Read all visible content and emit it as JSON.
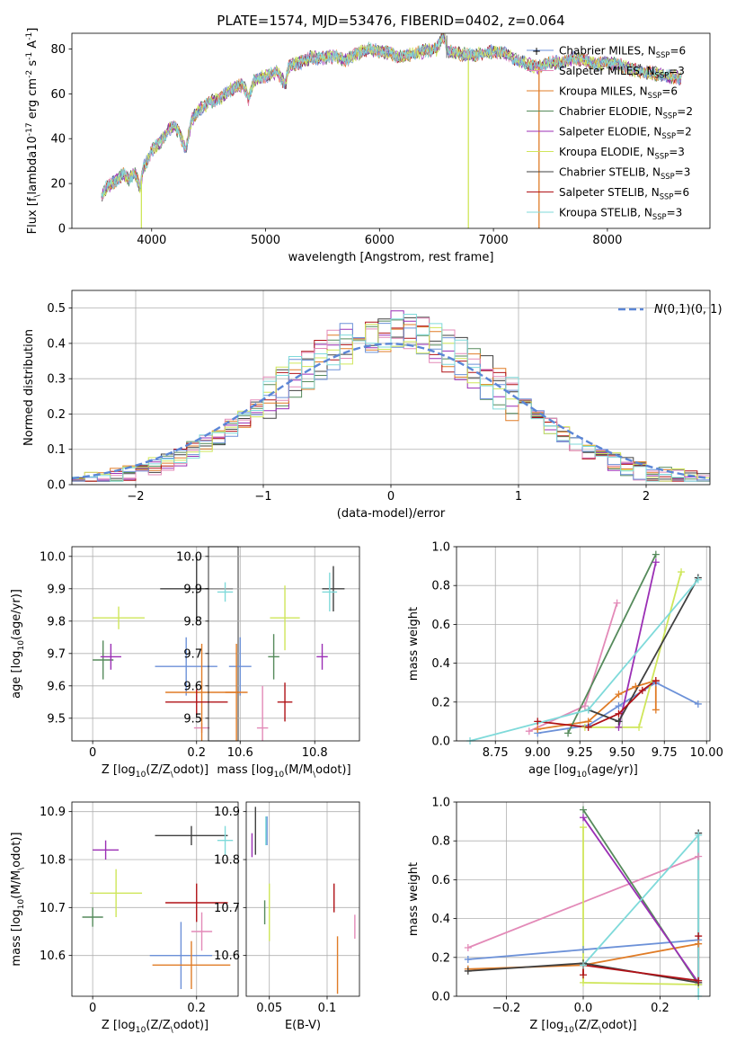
{
  "series_styles": [
    {
      "name": "Chabrier MILES, N$_{SSP}$=6",
      "color": "#6c91d8"
    },
    {
      "name": "Salpeter MILES, N$_{SSP}$=3",
      "color": "#e38ab8"
    },
    {
      "name": "Kroupa MILES, N$_{SSP}$=6",
      "color": "#e07c27"
    },
    {
      "name": "Chabrier ELODIE, N$_{SSP}$=2",
      "color": "#558a5b"
    },
    {
      "name": "Salpeter ELODIE, N$_{SSP}$=2",
      "color": "#9b2fb5"
    },
    {
      "name": "Kroupa ELODIE, N$_{SSP}$=3",
      "color": "#cfe65a"
    },
    {
      "name": "Chabrier STELIB, N$_{SSP}$=3",
      "color": "#404040"
    },
    {
      "name": "Salpeter STELIB, N$_{SSP}$=6",
      "color": "#b01217"
    },
    {
      "name": "Kroupa STELIB, N$_{SSP}$=3",
      "color": "#7fdada"
    }
  ],
  "chart_data": [
    {
      "id": "spectrum",
      "type": "line",
      "title": "PLATE=1574, MJD=53476, FIBERID=0402, z=0.064",
      "xlabel": "wavelength [Angstrom, rest frame]",
      "ylabel": "Flux [f$_\\lambda$10$^{-17}$ erg cm$^{-2}$ s$^{-1}$ A$^{-1}$]",
      "xlim": [
        3300,
        8900
      ],
      "ylim": [
        0,
        87
      ],
      "xticks": [
        4000,
        5000,
        6000,
        7000,
        8000
      ],
      "yticks": [
        0,
        20,
        40,
        60,
        80
      ],
      "grid": false,
      "legend": "upper-right",
      "x": [
        3560,
        3600,
        3650,
        3700,
        3750,
        3800,
        3850,
        3900,
        3930,
        3960,
        4000,
        4050,
        4100,
        4150,
        4200,
        4250,
        4300,
        4350,
        4400,
        4500,
        4600,
        4700,
        4800,
        4850,
        4900,
        5000,
        5100,
        5175,
        5200,
        5300,
        5400,
        5500,
        5600,
        5700,
        5800,
        5900,
        6000,
        6100,
        6200,
        6300,
        6400,
        6500,
        6563,
        6600,
        6700,
        6800,
        6900,
        7000,
        7100,
        7200,
        7300,
        7400,
        7500,
        7600,
        7700,
        7800,
        7900,
        8000,
        8100,
        8200,
        8300,
        8400,
        8500,
        8650
      ],
      "y": [
        14,
        18,
        20,
        22,
        24,
        22,
        25,
        18,
        28,
        30,
        35,
        37,
        40,
        44,
        46,
        42,
        35,
        48,
        52,
        56,
        58,
        62,
        64,
        58,
        66,
        68,
        70,
        64,
        72,
        74,
        76,
        76,
        77,
        75,
        78,
        80,
        79,
        78,
        76,
        78,
        79,
        80,
        86,
        79,
        78,
        77,
        78,
        79,
        78,
        75,
        73,
        72,
        74,
        74,
        76,
        75,
        73,
        74,
        73,
        71,
        70,
        69,
        68,
        67
      ],
      "dips": [
        {
          "x": 3910,
          "series": 5
        },
        {
          "x": 6780,
          "series": 5
        },
        {
          "x": 7400,
          "series": 2
        }
      ],
      "spike": {
        "x": 6590,
        "value": 86
      }
    },
    {
      "id": "residuals",
      "type": "area",
      "xlabel": "(data-model)/error",
      "ylabel": "Normed distribution",
      "xlim": [
        -2.5,
        2.5
      ],
      "ylim": [
        0,
        0.55
      ],
      "xticks": [
        -2,
        -1,
        0,
        1,
        2
      ],
      "yticks": [
        0.0,
        0.1,
        0.2,
        0.3,
        0.4,
        0.5
      ],
      "grid": true,
      "legend": "upper-right",
      "bin_width": 0.1,
      "reference": {
        "name": "$\\mathcal{N}(0,1)$",
        "color": "#5b86d6",
        "dash": true
      }
    },
    {
      "id": "age-vs-Z",
      "type": "scatter",
      "xlabel": "Z [log$_{10}$($Z/Z_\\odot$)]",
      "ylabel": "age  [log$_{10}$($age/yr$)]",
      "xlim": [
        -0.04,
        0.28
      ],
      "ylim": [
        9.43,
        10.03
      ],
      "xticks": [
        0.0,
        0.2
      ],
      "yticks": [
        9.5,
        9.6,
        9.7,
        9.8,
        9.9,
        10.0
      ],
      "grid": true,
      "points": [
        {
          "series": 0,
          "x": 0.18,
          "y": 9.66,
          "xerr": 0.06,
          "yerr": 0.09
        },
        {
          "series": 1,
          "x": 0.21,
          "y": 9.47,
          "xerr": 0.015,
          "yerr": 0.015
        },
        {
          "series": 2,
          "x": 0.21,
          "y": 9.58,
          "xerr": 0.07,
          "yerr": 0.15
        },
        {
          "series": 3,
          "x": 0.02,
          "y": 9.68,
          "xerr": 0.02,
          "yerr": 0.06
        },
        {
          "series": 4,
          "x": 0.035,
          "y": 9.69,
          "xerr": 0.02,
          "yerr": 0.04
        },
        {
          "series": 5,
          "x": 0.05,
          "y": 9.81,
          "xerr": 0.05,
          "yerr": 0.035
        },
        {
          "series": 6,
          "x": 0.2,
          "y": 9.9,
          "xerr": 0.07,
          "yerr": 0.1
        },
        {
          "series": 7,
          "x": 0.2,
          "y": 9.55,
          "xerr": 0.06,
          "yerr": 0.04
        },
        {
          "series": 8,
          "x": 0.255,
          "y": 9.89,
          "xerr": 0.015,
          "yerr": 0.03
        }
      ]
    },
    {
      "id": "age-vs-mass",
      "type": "scatter",
      "xlabel": "mass [log$_{10}$($M/M_\\odot$)]",
      "ylabel": "",
      "xlim": [
        10.515,
        10.92
      ],
      "ylim": [
        9.43,
        10.03
      ],
      "xticks": [
        10.6,
        10.8
      ],
      "yticks": [
        9.5,
        9.6,
        9.7,
        9.8,
        9.9,
        10.0
      ],
      "grid": true,
      "points": [
        {
          "series": 0,
          "x": 10.6,
          "y": 9.66,
          "xerr": 0.03,
          "yerr": 0.09
        },
        {
          "series": 1,
          "x": 10.66,
          "y": 9.47,
          "xerr": 0.015,
          "yerr": 0.13
        },
        {
          "series": 2,
          "x": 10.59,
          "y": 9.58,
          "xerr": 0.03,
          "yerr": 0.15
        },
        {
          "series": 3,
          "x": 10.69,
          "y": 9.69,
          "xerr": 0.015,
          "yerr": 0.07
        },
        {
          "series": 4,
          "x": 10.82,
          "y": 9.69,
          "xerr": 0.015,
          "yerr": 0.04
        },
        {
          "series": 5,
          "x": 10.72,
          "y": 9.81,
          "xerr": 0.04,
          "yerr": 0.1
        },
        {
          "series": 6,
          "x": 10.85,
          "y": 9.9,
          "xerr": 0.03,
          "yerr": 0.07
        },
        {
          "series": 7,
          "x": 10.72,
          "y": 9.55,
          "xerr": 0.02,
          "yerr": 0.06
        },
        {
          "series": 8,
          "x": 10.84,
          "y": 9.89,
          "xerr": 0.02,
          "yerr": 0.06
        }
      ]
    },
    {
      "id": "weights-vs-age",
      "type": "line",
      "xlabel": "age  [log$_{10}$($age/yr$)]",
      "ylabel": "mass weight",
      "xlim": [
        8.52,
        10.02
      ],
      "ylim": [
        0,
        1.0
      ],
      "xticks": [
        8.75,
        9.0,
        9.25,
        9.5,
        9.75,
        10.0
      ],
      "xtick_labels": [
        "8.75",
        "9.00",
        "9.25",
        "9.50",
        "9.75",
        "10.00"
      ],
      "yticks": [
        0.0,
        0.2,
        0.4,
        0.6,
        0.8,
        1.0
      ],
      "grid": true,
      "series": [
        {
          "series": 0,
          "x": [
            9.0,
            9.3,
            9.48,
            9.7,
            9.95
          ],
          "y": [
            0.04,
            0.08,
            0.18,
            0.3,
            0.19
          ]
        },
        {
          "series": 1,
          "x": [
            8.95,
            9.28,
            9.47
          ],
          "y": [
            0.05,
            0.18,
            0.71
          ]
        },
        {
          "series": 2,
          "x": [
            9.0,
            9.3,
            9.48,
            9.58,
            9.7,
            9.7
          ],
          "y": [
            0.06,
            0.1,
            0.24,
            0.28,
            0.31,
            0.16
          ]
        },
        {
          "series": 3,
          "x": [
            9.18,
            9.7
          ],
          "y": [
            0.04,
            0.96
          ]
        },
        {
          "series": 4,
          "x": [
            9.48,
            9.7
          ],
          "y": [
            0.07,
            0.92
          ]
        },
        {
          "series": 5,
          "x": [
            9.28,
            9.6,
            9.85
          ],
          "y": [
            0.07,
            0.07,
            0.87
          ]
        },
        {
          "series": 6,
          "x": [
            9.3,
            9.48,
            9.95
          ],
          "y": [
            0.16,
            0.1,
            0.84
          ]
        },
        {
          "series": 7,
          "x": [
            9.0,
            9.3,
            9.48,
            9.62,
            9.7
          ],
          "y": [
            0.1,
            0.07,
            0.14,
            0.26,
            0.31
          ]
        },
        {
          "series": 8,
          "x": [
            8.6,
            9.3,
            9.95
          ],
          "y": [
            0.0,
            0.16,
            0.83
          ]
        }
      ]
    },
    {
      "id": "mass-vs-Z",
      "type": "scatter",
      "xlabel": "Z [log$_{10}$($Z/Z_\\odot$)]",
      "ylabel": "mass [log$_{10}$($M/M_\\odot$)]",
      "xlim": [
        -0.04,
        0.28
      ],
      "ylim": [
        10.515,
        10.92
      ],
      "xticks": [
        0.0,
        0.2
      ],
      "yticks": [
        10.6,
        10.7,
        10.8,
        10.9
      ],
      "grid": true,
      "points": [
        {
          "series": 0,
          "x": 0.17,
          "y": 10.6,
          "xerr": 0.06,
          "yerr": 0.07
        },
        {
          "series": 1,
          "x": 0.21,
          "y": 10.65,
          "xerr": 0.02,
          "yerr": 0.04
        },
        {
          "series": 2,
          "x": 0.19,
          "y": 10.58,
          "xerr": 0.075,
          "yerr": 0.05
        },
        {
          "series": 3,
          "x": 0.0,
          "y": 10.68,
          "xerr": 0.02,
          "yerr": 0.02
        },
        {
          "series": 4,
          "x": 0.025,
          "y": 10.82,
          "xerr": 0.025,
          "yerr": 0.02
        },
        {
          "series": 5,
          "x": 0.045,
          "y": 10.73,
          "xerr": 0.05,
          "yerr": 0.05
        },
        {
          "series": 6,
          "x": 0.19,
          "y": 10.85,
          "xerr": 0.07,
          "yerr": 0.02
        },
        {
          "series": 7,
          "x": 0.2,
          "y": 10.71,
          "xerr": 0.06,
          "yerr": 0.04
        },
        {
          "series": 8,
          "x": 0.255,
          "y": 10.84,
          "xerr": 0.015,
          "yerr": 0.03
        }
      ]
    },
    {
      "id": "mass-vs-EBV",
      "type": "scatter",
      "xlabel": "E(B-V)",
      "ylabel": "",
      "xlim": [
        0.03,
        0.128
      ],
      "ylim": [
        10.515,
        10.92
      ],
      "xticks": [
        0.05,
        0.1
      ],
      "yticks": [
        10.6,
        10.7,
        10.8,
        10.9
      ],
      "grid": true,
      "points": [
        {
          "series": 0,
          "x": 0.048,
          "y": 10.86,
          "xerr": 0.0,
          "yerr": 0.03
        },
        {
          "series": 1,
          "x": 0.124,
          "y": 10.66,
          "xerr": 0.0,
          "yerr": 0.025
        },
        {
          "series": 2,
          "x": 0.109,
          "y": 10.58,
          "xerr": 0.0,
          "yerr": 0.06
        },
        {
          "series": 3,
          "x": 0.046,
          "y": 10.69,
          "xerr": 0.0,
          "yerr": 0.025
        },
        {
          "series": 4,
          "x": 0.035,
          "y": 10.83,
          "xerr": 0.0,
          "yerr": 0.025
        },
        {
          "series": 5,
          "x": 0.05,
          "y": 10.69,
          "xerr": 0.0,
          "yerr": 0.06
        },
        {
          "series": 6,
          "x": 0.038,
          "y": 10.86,
          "xerr": 0.0,
          "yerr": 0.05
        },
        {
          "series": 7,
          "x": 0.106,
          "y": 10.72,
          "xerr": 0.0,
          "yerr": 0.03
        },
        {
          "series": 8,
          "x": 0.047,
          "y": 10.86,
          "xerr": 0.0,
          "yerr": 0.03
        }
      ]
    },
    {
      "id": "weights-vs-Z",
      "type": "line",
      "xlabel": "Z [log$_{10}$($Z/Z_\\odot$)]",
      "ylabel": "mass weight",
      "xlim": [
        -0.33,
        0.33
      ],
      "ylim": [
        0,
        1.0
      ],
      "xticks": [
        -0.2,
        0.0,
        0.2
      ],
      "xtick_labels": [
        "−0.2",
        "0.0",
        "0.2"
      ],
      "yticks": [
        0.0,
        0.2,
        0.4,
        0.6,
        0.8,
        1.0
      ],
      "grid": true,
      "series": [
        {
          "series": 0,
          "x": [
            -0.3,
            0.0,
            0.3
          ],
          "y": [
            0.19,
            0.24,
            0.29
          ]
        },
        {
          "series": 1,
          "x": [
            -0.3,
            0.3
          ],
          "y": [
            0.25,
            0.72
          ]
        },
        {
          "series": 2,
          "x": [
            -0.3,
            0.0,
            0.3
          ],
          "y": [
            0.14,
            0.16,
            0.27
          ]
        },
        {
          "series": 3,
          "x": [
            0.0,
            0.3
          ],
          "y": [
            0.96,
            0.06
          ]
        },
        {
          "series": 4,
          "x": [
            0.0,
            0.3
          ],
          "y": [
            0.92,
            0.07
          ]
        },
        {
          "series": 5,
          "x": [
            0.0,
            0.0,
            0.3
          ],
          "y": [
            0.87,
            0.07,
            0.06
          ]
        },
        {
          "series": 6,
          "x": [
            -0.3,
            0.0,
            0.3,
            0.3
          ],
          "y": [
            0.13,
            0.17,
            0.07,
            0.84
          ]
        },
        {
          "series": 7,
          "x": [
            0.0,
            0.0,
            0.3,
            0.3
          ],
          "y": [
            0.11,
            0.16,
            0.08,
            0.31
          ]
        },
        {
          "series": 8,
          "x": [
            0.0,
            0.3,
            0.3
          ],
          "y": [
            0.16,
            0.83,
            0.0
          ]
        }
      ]
    }
  ]
}
